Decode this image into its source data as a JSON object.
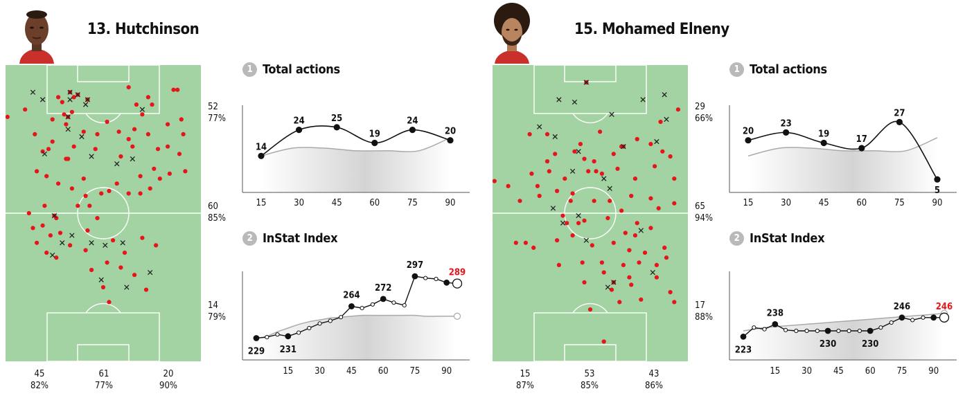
{
  "colors": {
    "pitch": "#a3d2a3",
    "line": "#ffffff",
    "action": "#e8141a",
    "loss": "#222222",
    "highlight": "#e8141a"
  },
  "players": [
    {
      "name": "13. Hutchinson",
      "photo_icon": "player-photo",
      "right_stats": [
        {
          "count": "52",
          "pct": "77%"
        },
        {
          "count": "60",
          "pct": "85%"
        },
        {
          "count": "14",
          "pct": "79%"
        }
      ],
      "bottom_stats": [
        {
          "count": "45",
          "pct": "82%"
        },
        {
          "count": "61",
          "pct": "77%"
        },
        {
          "count": "20",
          "pct": "90%"
        }
      ],
      "section1_num": "1",
      "section1_title": "Total actions",
      "section2_num": "2",
      "section2_title": "InStat Index"
    },
    {
      "name": "15. Mohamed Elneny",
      "photo_icon": "player-photo",
      "right_stats": [
        {
          "count": "29",
          "pct": "66%"
        },
        {
          "count": "65",
          "pct": "94%"
        },
        {
          "count": "17",
          "pct": "88%"
        }
      ],
      "bottom_stats": [
        {
          "count": "15",
          "pct": "87%"
        },
        {
          "count": "53",
          "pct": "85%"
        },
        {
          "count": "43",
          "pct": "86%"
        }
      ],
      "section1_num": "1",
      "section1_title": "Total actions",
      "section2_num": "2",
      "section2_title": "InStat Index"
    }
  ],
  "chart_data": [
    {
      "type": "line",
      "title": "Total actions",
      "player": "13. Hutchinson",
      "x": [
        15,
        30,
        45,
        60,
        75,
        90
      ],
      "values": [
        14,
        24,
        25,
        19,
        24,
        20
      ],
      "labels": [
        "14",
        "24",
        "25",
        "19",
        "24",
        "20"
      ],
      "average_line": [
        14,
        17,
        17,
        16,
        16,
        16,
        21
      ],
      "ylim": [
        0,
        34
      ],
      "xticks": [
        "15",
        "30",
        "45",
        "60",
        "75",
        "90"
      ]
    },
    {
      "type": "line",
      "title": "InStat Index",
      "player": "13. Hutchinson",
      "x": [
        0,
        5,
        10,
        15,
        20,
        25,
        30,
        35,
        40,
        45,
        50,
        55,
        60,
        65,
        70,
        75,
        80,
        85,
        90,
        95
      ],
      "values": [
        229,
        230,
        233,
        231,
        235,
        240,
        245,
        248,
        252,
        264,
        262,
        266,
        272,
        268,
        265,
        297,
        295,
        294,
        290,
        289
      ],
      "labeled": [
        {
          "i": 0,
          "label": "229"
        },
        {
          "i": 3,
          "label": "231"
        },
        {
          "i": 9,
          "label": "264"
        },
        {
          "i": 12,
          "label": "272"
        },
        {
          "i": 15,
          "label": "297"
        },
        {
          "i": 19,
          "label": "289",
          "highlight": true
        }
      ],
      "big_points": [
        0,
        3,
        9,
        12,
        15,
        18
      ],
      "average_line": [
        229,
        231,
        236,
        240,
        244,
        247,
        249,
        251,
        252,
        253,
        254,
        254,
        254,
        254,
        254,
        254,
        253,
        253,
        253,
        253
      ],
      "ylim": [
        205,
        310
      ],
      "xticks": [
        "15",
        "30",
        "45",
        "60",
        "75",
        "90"
      ]
    },
    {
      "type": "line",
      "title": "Total actions",
      "player": "15. Mohamed Elneny",
      "x": [
        15,
        30,
        45,
        60,
        75,
        90
      ],
      "values": [
        20,
        23,
        19,
        17,
        27,
        5
      ],
      "labels": [
        "20",
        "23",
        "19",
        "17",
        "27",
        "5"
      ],
      "average_line": [
        14,
        17,
        17,
        16,
        16,
        16,
        21
      ],
      "ylim": [
        0,
        34
      ],
      "xticks": [
        "15",
        "30",
        "45",
        "60",
        "75",
        "90"
      ]
    },
    {
      "type": "line",
      "title": "InStat Index",
      "player": "15. Mohamed Elneny",
      "x": [
        0,
        5,
        10,
        15,
        20,
        25,
        30,
        35,
        40,
        45,
        50,
        55,
        60,
        65,
        70,
        75,
        80,
        85,
        90,
        95
      ],
      "values": [
        223,
        234,
        232,
        238,
        231,
        230,
        230,
        230,
        230,
        230,
        230,
        230,
        230,
        234,
        240,
        246,
        243,
        246,
        246,
        246
      ],
      "labeled": [
        {
          "i": 0,
          "label": "223"
        },
        {
          "i": 3,
          "label": "238"
        },
        {
          "i": 8,
          "label": "230"
        },
        {
          "i": 12,
          "label": "230"
        },
        {
          "i": 15,
          "label": "246"
        },
        {
          "i": 19,
          "label": "246",
          "highlight": true
        }
      ],
      "big_points": [
        0,
        3,
        8,
        12,
        15,
        18
      ],
      "average_line": [
        230,
        232,
        234,
        235,
        236,
        237,
        238,
        239,
        240,
        241,
        242,
        243,
        244,
        245,
        246,
        247,
        248,
        249,
        250,
        251
      ],
      "ylim": [
        195,
        310
      ],
      "xticks": [
        "15",
        "30",
        "45",
        "60",
        "75",
        "90"
      ]
    }
  ],
  "action_maps": [
    {
      "player": "13. Hutchinson",
      "dots": [
        [
          10,
          18
        ],
        [
          24,
          22
        ],
        [
          27,
          13
        ],
        [
          35,
          13
        ],
        [
          29,
          15
        ],
        [
          30,
          20
        ],
        [
          34,
          19
        ],
        [
          31,
          24
        ],
        [
          40,
          27
        ],
        [
          47,
          28
        ],
        [
          52,
          23
        ],
        [
          58,
          27
        ],
        [
          63,
          30
        ],
        [
          66,
          26
        ],
        [
          73,
          28
        ],
        [
          83,
          24
        ],
        [
          91,
          28
        ],
        [
          70,
          20
        ],
        [
          75,
          16
        ],
        [
          86,
          10
        ],
        [
          90,
          22
        ],
        [
          63,
          9
        ],
        [
          67,
          16
        ],
        [
          73,
          13
        ],
        [
          15,
          28
        ],
        [
          22,
          34
        ],
        [
          32,
          38
        ],
        [
          46,
          34
        ],
        [
          59,
          37
        ],
        [
          65,
          33
        ],
        [
          78,
          34
        ],
        [
          83,
          33
        ],
        [
          89,
          36
        ],
        [
          92,
          43
        ],
        [
          16,
          43
        ],
        [
          21,
          45
        ],
        [
          27,
          48
        ],
        [
          34,
          50
        ],
        [
          41,
          53
        ],
        [
          49,
          52
        ],
        [
          53,
          51
        ],
        [
          57,
          48
        ],
        [
          63,
          52
        ],
        [
          69,
          52
        ],
        [
          74,
          50
        ],
        [
          79,
          46
        ],
        [
          84,
          44
        ],
        [
          12,
          60
        ],
        [
          20,
          57
        ],
        [
          26,
          62
        ],
        [
          37,
          57
        ],
        [
          43,
          57
        ],
        [
          47,
          62
        ],
        [
          19,
          65
        ],
        [
          28,
          68
        ],
        [
          33,
          73
        ],
        [
          42,
          67
        ],
        [
          55,
          71
        ],
        [
          61,
          76
        ],
        [
          70,
          70
        ],
        [
          77,
          73
        ],
        [
          26,
          78
        ],
        [
          41,
          75
        ],
        [
          52,
          80
        ],
        [
          59,
          82
        ],
        [
          44,
          83
        ],
        [
          66,
          85
        ],
        [
          50,
          90
        ],
        [
          72,
          91
        ],
        [
          53,
          96
        ],
        [
          88,
          10
        ],
        [
          1,
          21
        ],
        [
          35,
          33
        ],
        [
          19,
          35
        ],
        [
          24,
          31
        ],
        [
          31,
          38
        ],
        [
          40,
          46
        ],
        [
          69,
          45
        ],
        [
          76,
          42
        ],
        [
          14,
          66
        ],
        [
          23,
          69
        ],
        [
          16,
          72
        ],
        [
          21,
          76
        ]
      ],
      "losses": [
        [
          14,
          11
        ],
        [
          19,
          14
        ],
        [
          33,
          14
        ],
        [
          41,
          16
        ],
        [
          39,
          29
        ],
        [
          44,
          37
        ],
        [
          57,
          40
        ],
        [
          65,
          38
        ],
        [
          20,
          36
        ],
        [
          34,
          69
        ],
        [
          29,
          72
        ],
        [
          44,
          72
        ],
        [
          51,
          73
        ],
        [
          60,
          72
        ],
        [
          24,
          77
        ],
        [
          74,
          84
        ],
        [
          49,
          87
        ],
        [
          62,
          90
        ],
        [
          70,
          18
        ],
        [
          32,
          26
        ]
      ],
      "red_x": [
        [
          33,
          11
        ],
        [
          37,
          12
        ],
        [
          42,
          14
        ],
        [
          32,
          21
        ],
        [
          25,
          61
        ]
      ]
    },
    {
      "player": "15. Mohamed Elneny",
      "dots": [
        [
          19,
          28
        ],
        [
          28,
          39
        ],
        [
          42,
          35
        ],
        [
          47,
          38
        ],
        [
          52,
          39
        ],
        [
          66,
          33
        ],
        [
          81,
          32
        ],
        [
          87,
          35
        ],
        [
          28,
          28
        ],
        [
          55,
          27
        ],
        [
          62,
          36
        ],
        [
          74,
          30
        ],
        [
          86,
          23
        ],
        [
          91,
          37
        ],
        [
          95,
          18
        ],
        [
          20,
          44
        ],
        [
          29,
          43
        ],
        [
          37,
          46
        ],
        [
          49,
          43
        ],
        [
          56,
          44
        ],
        [
          64,
          42
        ],
        [
          73,
          46
        ],
        [
          83,
          41
        ],
        [
          93,
          46
        ],
        [
          24,
          53
        ],
        [
          33,
          51
        ],
        [
          40,
          55
        ],
        [
          52,
          55
        ],
        [
          60,
          55
        ],
        [
          71,
          53
        ],
        [
          81,
          54
        ],
        [
          93,
          56
        ],
        [
          14,
          55
        ],
        [
          36,
          61
        ],
        [
          47,
          63
        ],
        [
          59,
          62
        ],
        [
          66,
          59
        ],
        [
          74,
          64
        ],
        [
          85,
          58
        ],
        [
          12,
          72
        ],
        [
          17,
          72
        ],
        [
          21,
          74
        ],
        [
          33,
          71
        ],
        [
          41,
          69
        ],
        [
          51,
          73
        ],
        [
          62,
          72
        ],
        [
          70,
          75
        ],
        [
          78,
          76
        ],
        [
          88,
          74
        ],
        [
          34,
          81
        ],
        [
          46,
          80
        ],
        [
          57,
          84
        ],
        [
          67,
          81
        ],
        [
          75,
          80
        ],
        [
          84,
          81
        ],
        [
          47,
          88
        ],
        [
          61,
          91
        ],
        [
          71,
          89
        ],
        [
          84,
          86
        ],
        [
          91,
          92
        ],
        [
          50,
          99
        ],
        [
          65,
          96
        ],
        [
          76,
          95
        ],
        [
          93,
          96
        ],
        [
          57,
          112
        ],
        [
          45,
          32
        ],
        [
          53,
          43
        ],
        [
          32,
          36
        ],
        [
          41,
          52
        ],
        [
          73,
          69
        ],
        [
          68,
          68
        ],
        [
          81,
          66
        ],
        [
          89,
          78
        ],
        [
          1,
          47
        ],
        [
          8,
          49
        ],
        [
          23,
          49
        ],
        [
          38,
          64
        ],
        [
          44,
          64
        ],
        [
          56,
          80
        ],
        [
          70,
          86
        ]
      ],
      "losses": [
        [
          34,
          14
        ],
        [
          42,
          15
        ],
        [
          61,
          20
        ],
        [
          77,
          14
        ],
        [
          89,
          22
        ],
        [
          24,
          25
        ],
        [
          32,
          29
        ],
        [
          44,
          35
        ],
        [
          41,
          43
        ],
        [
          57,
          46
        ],
        [
          60,
          50
        ],
        [
          44,
          61
        ],
        [
          48,
          71
        ],
        [
          36,
          64
        ],
        [
          76,
          67
        ],
        [
          82,
          84
        ],
        [
          84,
          31
        ],
        [
          59,
          90
        ],
        [
          88,
          12
        ],
        [
          31,
          58
        ]
      ],
      "red_x": [
        [
          48,
          7
        ],
        [
          67,
          33
        ],
        [
          62,
          88
        ]
      ]
    }
  ]
}
